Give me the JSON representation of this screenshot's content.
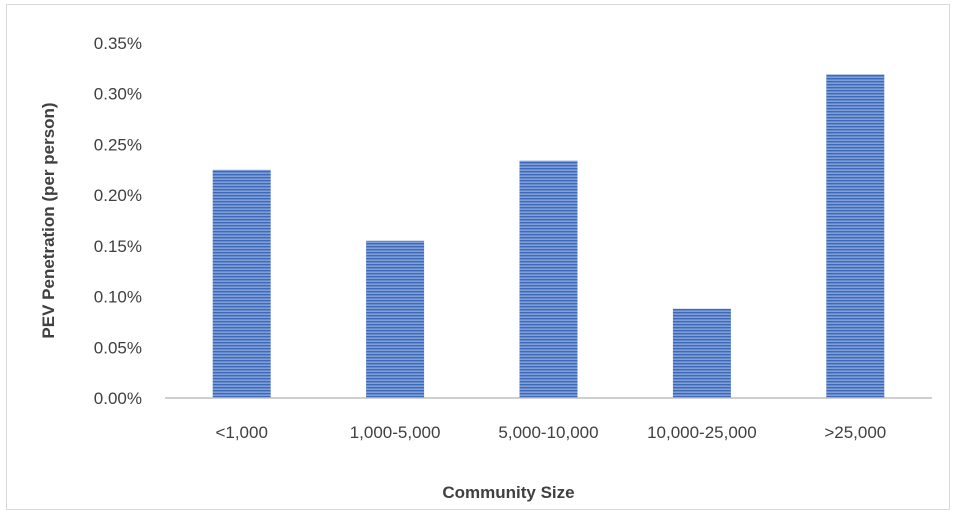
{
  "chart_data": {
    "type": "bar",
    "title": "",
    "xlabel": "Community Size",
    "ylabel": "PEV Penetration (per person)",
    "categories": [
      "<1,000",
      "1,000-5,000",
      "5,000-10,000",
      "10,000-25,000",
      ">25,000"
    ],
    "values": [
      0.00225,
      0.00155,
      0.00234,
      0.00088,
      0.00319
    ],
    "ylim": [
      0,
      0.0035
    ],
    "yticks": [
      0,
      0.0005,
      0.001,
      0.0015,
      0.002,
      0.0025,
      0.003,
      0.0035
    ],
    "ytick_labels": [
      "0.00%",
      "0.05%",
      "0.10%",
      "0.15%",
      "0.20%",
      "0.25%",
      "0.30%",
      "0.35%"
    ],
    "grid": false,
    "legend": "none",
    "bar_color": "#4472c4",
    "bar_fill": "horizontal-stripes"
  }
}
